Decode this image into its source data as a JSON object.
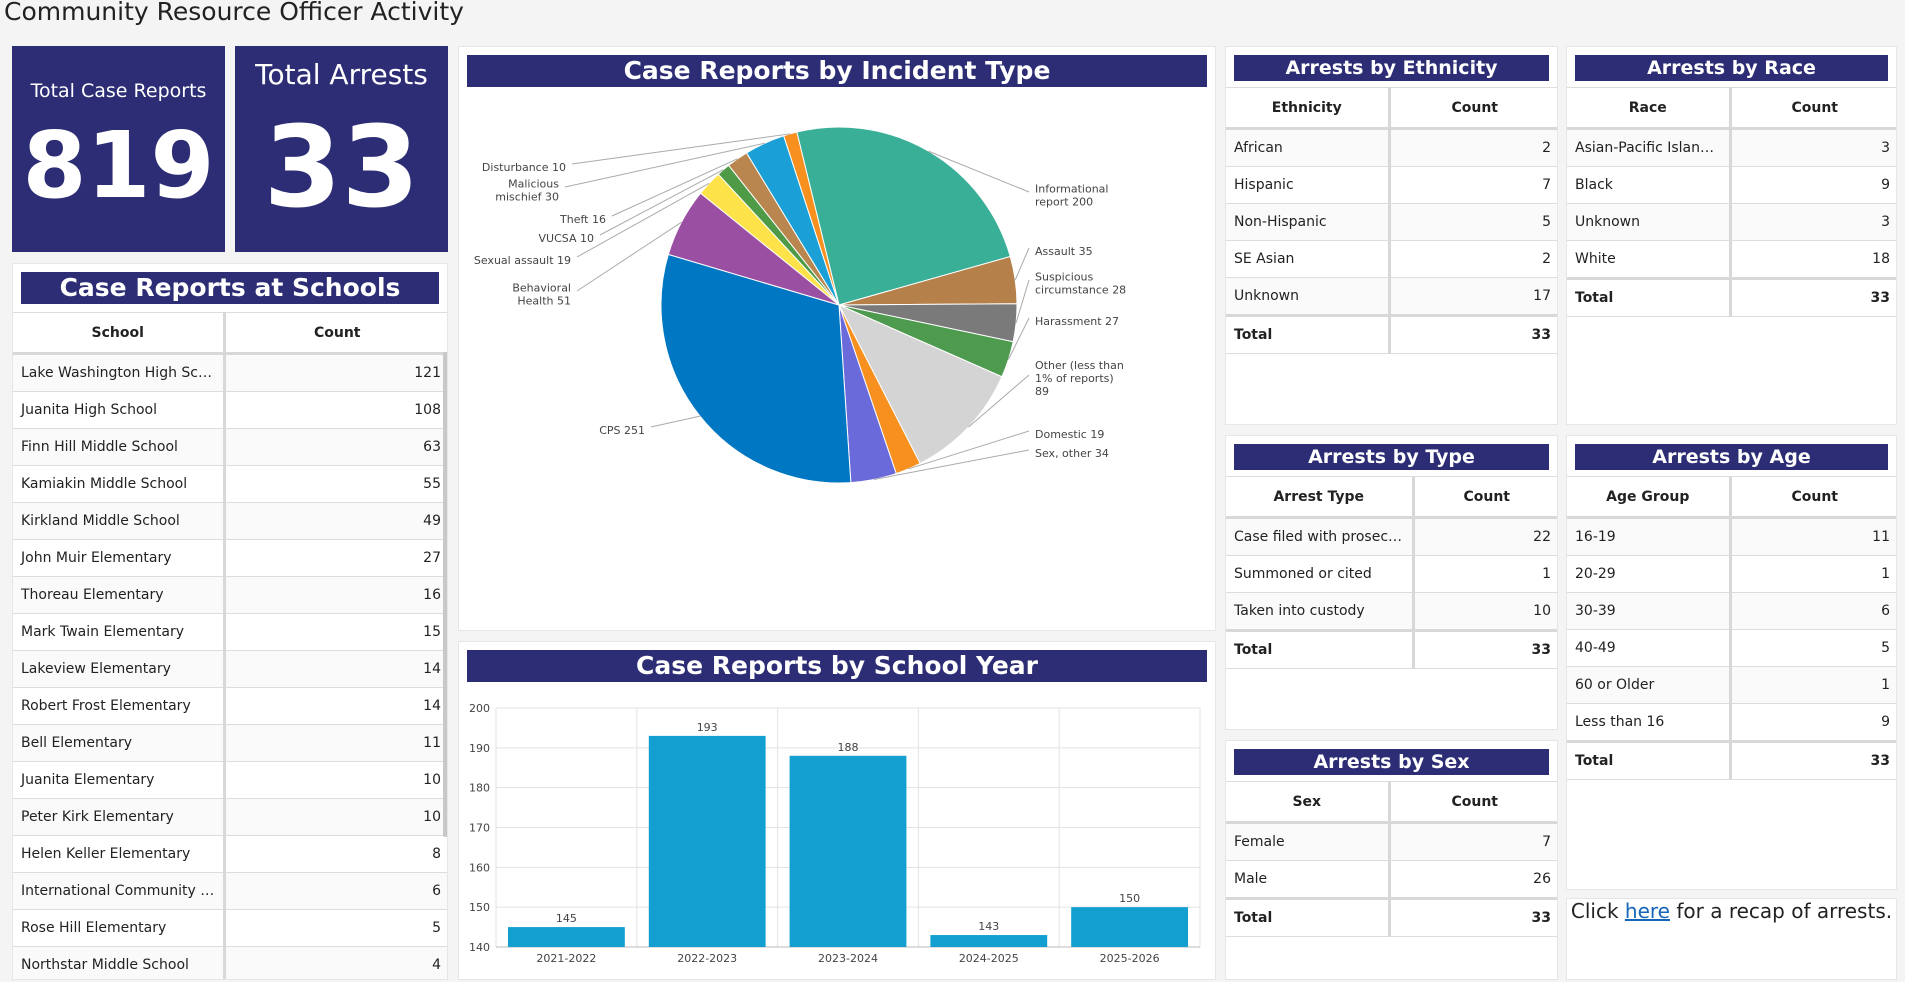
{
  "page_title": "Community Resource Officer Activity",
  "kpis": {
    "case_reports": {
      "label": "Total Case Reports",
      "value": "819"
    },
    "arrests": {
      "label": "Total Arrests",
      "value": "33"
    }
  },
  "schools": {
    "title": "Case Reports at Schools",
    "columns": [
      "School",
      "Count"
    ],
    "rows": [
      [
        "Lake Washington High School",
        "121"
      ],
      [
        "Juanita High School",
        "108"
      ],
      [
        "Finn Hill Middle School",
        "63"
      ],
      [
        "Kamiakin Middle School",
        "55"
      ],
      [
        "Kirkland Middle School",
        "49"
      ],
      [
        "John Muir Elementary",
        "27"
      ],
      [
        "Thoreau Elementary",
        "16"
      ],
      [
        "Mark Twain Elementary",
        "15"
      ],
      [
        "Lakeview Elementary",
        "14"
      ],
      [
        "Robert Frost Elementary",
        "14"
      ],
      [
        "Bell Elementary",
        "11"
      ],
      [
        "Juanita Elementary",
        "10"
      ],
      [
        "Peter Kirk Elementary",
        "10"
      ],
      [
        "Helen Keller Elementary",
        "8"
      ],
      [
        "International Community Sc...",
        "6"
      ],
      [
        "Rose Hill Elementary",
        "5"
      ],
      [
        "Northstar Middle School",
        "4"
      ]
    ]
  },
  "pie": {
    "title": "Case Reports by Incident Type",
    "chart_data": {
      "type": "pie",
      "slices": [
        {
          "name": "Informational report",
          "value": 200,
          "color": "#3aaf98"
        },
        {
          "name": "Assault",
          "value": 35,
          "color": "#b5804a"
        },
        {
          "name": "Suspicious circumstance",
          "value": 28,
          "color": "#7a7a7a"
        },
        {
          "name": "Harassment",
          "value": 27,
          "color": "#4e9a4e"
        },
        {
          "name": "Other (less than 1% of reports)",
          "value": 89,
          "color": "#d4d4d4"
        },
        {
          "name": "Domestic",
          "value": 19,
          "color": "#f7901e"
        },
        {
          "name": "Sex, other",
          "value": 34,
          "color": "#6a6adb"
        },
        {
          "name": "CPS",
          "value": 251,
          "color": "#0077c2"
        },
        {
          "name": "Behavioral Health",
          "value": 51,
          "color": "#9b4fa3"
        },
        {
          "name": "Sexual assault",
          "value": 19,
          "color": "#fde24a"
        },
        {
          "name": "VUCSA",
          "value": 10,
          "color": "#4f9a47"
        },
        {
          "name": "Theft",
          "value": 16,
          "color": "#b8864e"
        },
        {
          "name": "Malicious mischief",
          "value": 30,
          "color": "#1aa0d6"
        },
        {
          "name": "Disturbance",
          "value": 10,
          "color": "#f7901e"
        }
      ],
      "labels": [
        {
          "lines": [
            "Informational",
            "report 200"
          ],
          "side": "right"
        },
        {
          "lines": [
            "Assault 35"
          ],
          "side": "right"
        },
        {
          "lines": [
            "Suspicious",
            "circumstance 28"
          ],
          "side": "right"
        },
        {
          "lines": [
            "Harassment 27"
          ],
          "side": "right"
        },
        {
          "lines": [
            "Other (less than",
            "1% of reports)",
            "89"
          ],
          "side": "right"
        },
        {
          "lines": [
            "Domestic 19"
          ],
          "side": "right"
        },
        {
          "lines": [
            "Sex, other 34"
          ],
          "side": "right"
        },
        {
          "lines": [
            "CPS 251"
          ],
          "side": "left"
        },
        {
          "lines": [
            "Behavioral",
            "Health 51"
          ],
          "side": "left"
        },
        {
          "lines": [
            "Sexual assault 19"
          ],
          "side": "left"
        },
        {
          "lines": [
            "VUCSA 10"
          ],
          "side": "left"
        },
        {
          "lines": [
            "Theft 16"
          ],
          "side": "left"
        },
        {
          "lines": [
            "Malicious",
            "mischief 30"
          ],
          "side": "left"
        },
        {
          "lines": [
            "Disturbance 10"
          ],
          "side": "left"
        }
      ]
    }
  },
  "bar": {
    "title": "Case Reports by School Year",
    "chart_data": {
      "type": "bar",
      "categories": [
        "2021-2022",
        "2022-2023",
        "2023-2024",
        "2024-2025",
        "2025-2026"
      ],
      "values": [
        145,
        193,
        188,
        143,
        150
      ],
      "ylim": [
        140,
        200
      ],
      "yticks": [
        140,
        150,
        160,
        170,
        180,
        190,
        200
      ],
      "grid": true,
      "color": "#139fd0"
    }
  },
  "ethnicity": {
    "title": "Arrests by Ethnicity",
    "columns": [
      "Ethnicity",
      "Count"
    ],
    "rows": [
      [
        "African",
        "2"
      ],
      [
        "Hispanic",
        "7"
      ],
      [
        "Non-Hispanic",
        "5"
      ],
      [
        "SE Asian",
        "2"
      ],
      [
        "Unknown",
        "17"
      ]
    ],
    "total": [
      "Total",
      "33"
    ]
  },
  "race": {
    "title": "Arrests by Race",
    "columns": [
      "Race",
      "Count"
    ],
    "rows": [
      [
        "Asian-Pacific Islander",
        "3"
      ],
      [
        "Black",
        "9"
      ],
      [
        "Unknown",
        "3"
      ],
      [
        "White",
        "18"
      ]
    ],
    "total": [
      "Total",
      "33"
    ]
  },
  "type": {
    "title": "Arrests by Type",
    "columns": [
      "Arrest Type",
      "Count"
    ],
    "rows": [
      [
        "Case filed with prosecutor",
        "22"
      ],
      [
        "Summoned or cited",
        "1"
      ],
      [
        "Taken into custody",
        "10"
      ]
    ],
    "total": [
      "Total",
      "33"
    ]
  },
  "age": {
    "title": "Arrests by Age",
    "columns": [
      "Age Group",
      "Count"
    ],
    "rows": [
      [
        "16-19",
        "11"
      ],
      [
        "20-29",
        "1"
      ],
      [
        "30-39",
        "6"
      ],
      [
        "40-49",
        "5"
      ],
      [
        "60 or Older",
        "1"
      ],
      [
        "Less than 16",
        "9"
      ]
    ],
    "total": [
      "Total",
      "33"
    ]
  },
  "sex": {
    "title": "Arrests by Sex",
    "columns": [
      "Sex",
      "Count"
    ],
    "rows": [
      [
        "Female",
        "7"
      ],
      [
        "Male",
        "26"
      ]
    ],
    "total": [
      "Total",
      "33"
    ]
  },
  "recap": {
    "prefix": "Click ",
    "link": "here",
    "suffix": " for a recap of arrests."
  }
}
